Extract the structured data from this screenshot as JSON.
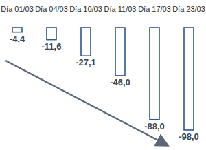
{
  "chart_data": {
    "type": "bar",
    "categories": [
      "Día 01/03",
      "Día 04/03",
      "Día 10/03",
      "Día 11/03",
      "Día 17/03",
      "Día 23/03"
    ],
    "values": [
      -4.4,
      -11.6,
      -27.1,
      -46.0,
      -88.0,
      -98.0
    ],
    "value_labels": [
      "-4,4",
      "-11,6",
      "-27,1",
      "-46,0",
      "-88,0",
      "-98,0"
    ],
    "color": "#2f5597",
    "ylim": [
      -100,
      0
    ],
    "grid": false,
    "data_labels": true,
    "tick_labels": "x"
  }
}
